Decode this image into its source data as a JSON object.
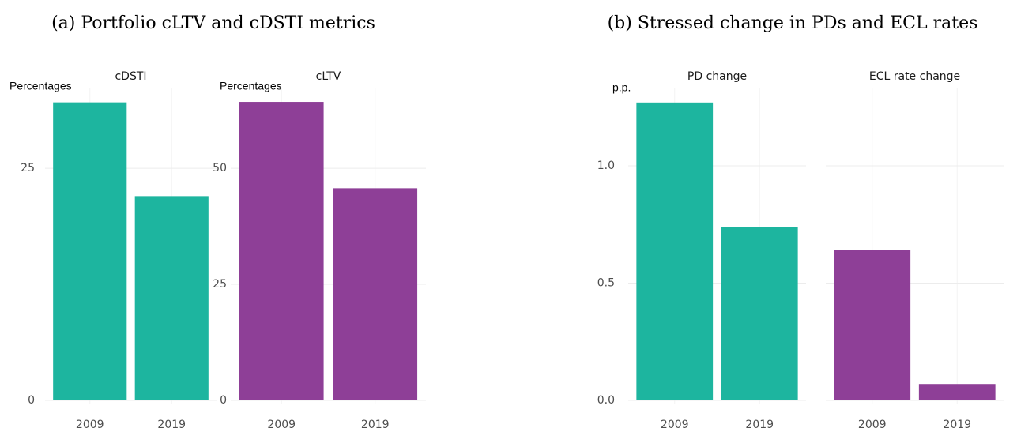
{
  "chart_data": [
    {
      "type": "bar",
      "title": "(a) Portfolio cLTV and cDSTI metrics",
      "facets": [
        {
          "title": "cDSTI",
          "y_label": "Percentages",
          "categories": [
            "2009",
            "2019"
          ],
          "values": [
            32.1,
            22.0
          ],
          "color": "#1db59f",
          "ylim": [
            0,
            33.6
          ],
          "yticks": [
            0,
            25
          ]
        },
        {
          "title": "cLTV",
          "y_label": "Percentages",
          "categories": [
            "2009",
            "2019"
          ],
          "values": [
            64.3,
            45.7
          ],
          "color": "#8e3f97",
          "ylim": [
            0,
            67.2
          ],
          "yticks": [
            0,
            25,
            50
          ]
        }
      ]
    },
    {
      "type": "bar",
      "title": "(b) Stressed change in PDs and ECL rates",
      "y_label": "p.p.",
      "ylim": [
        0,
        1.33
      ],
      "yticks": [
        {
          "value": 0,
          "label": "0.0"
        },
        0.5,
        {
          "value": 1,
          "label": "1.0"
        }
      ],
      "facets": [
        {
          "title": "PD change",
          "categories": [
            "2009",
            "2019"
          ],
          "values": [
            1.27,
            0.74
          ],
          "color": "#1db59f"
        },
        {
          "title": "ECL rate change",
          "categories": [
            "2009",
            "2019"
          ],
          "values": [
            0.64,
            0.07
          ],
          "color": "#8e3f97"
        }
      ]
    }
  ]
}
